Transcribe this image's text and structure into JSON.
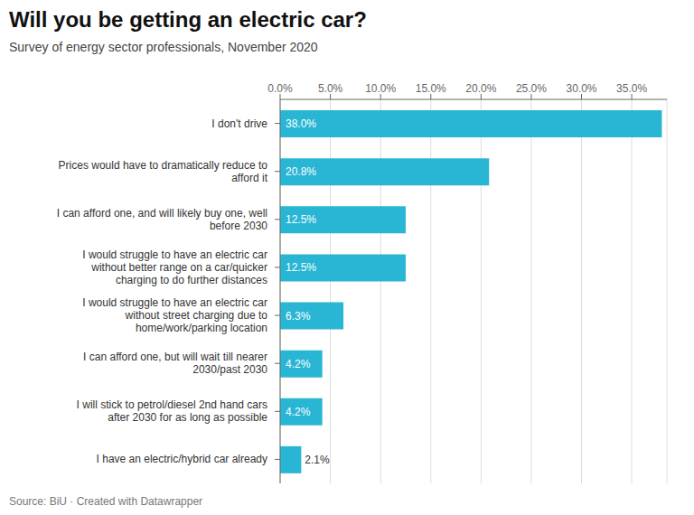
{
  "chart_data": {
    "type": "bar",
    "orientation": "horizontal",
    "title": "Will you be getting an electric car?",
    "subtitle": "Survey of energy sector professionals, November 2020",
    "source": "Source: BiU · Created with Datawrapper",
    "categories": [
      "I don't drive",
      "Prices would have to dramatically reduce to\nafford it",
      "I can afford one, and will likely buy one, well\nbefore 2030",
      "I would struggle to have an electric car\nwithout better range on a car/quicker\ncharging to do further distances",
      "I would struggle to have an electric car\nwithout street charging due to\nhome/work/parking location",
      "I can afford one, but will wait till nearer\n2030/past 2030",
      "I will stick to petrol/diesel 2nd hand cars\nafter 2030 for as long as possible",
      "I have an electric/hybrid car already"
    ],
    "values": [
      38.0,
      20.8,
      12.5,
      12.5,
      6.3,
      4.2,
      4.2,
      2.1
    ],
    "value_labels": [
      "38.0%",
      "20.8%",
      "12.5%",
      "12.5%",
      "6.3%",
      "4.2%",
      "4.2%",
      "2.1%"
    ],
    "data_labels": true,
    "color": "#29B6D5",
    "xlim": [
      0,
      38.5
    ],
    "xticks": [
      {
        "value": 0,
        "label": "0.0%"
      },
      {
        "value": 5,
        "label": "5.0%"
      },
      {
        "value": 10,
        "label": "10.0%"
      },
      {
        "value": 15,
        "label": "15.0%"
      },
      {
        "value": 20,
        "label": "20.0%"
      },
      {
        "value": 25,
        "label": "25.0%"
      },
      {
        "value": 30,
        "label": "30.0%"
      },
      {
        "value": 35,
        "label": "35.0%"
      }
    ],
    "grid": true
  }
}
